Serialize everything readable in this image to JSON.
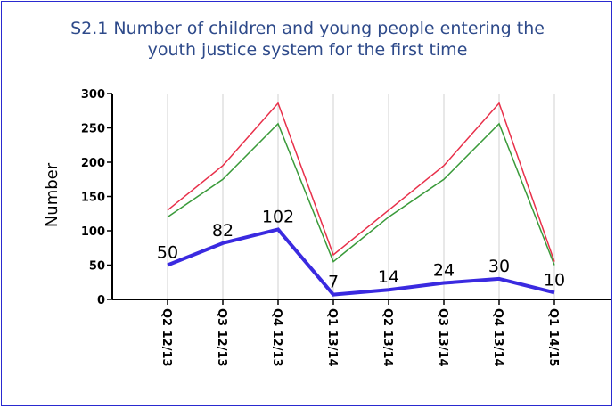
{
  "chart_data": {
    "type": "line",
    "title_line1": "S2.1 Number of children and young people entering the",
    "title_line2": "youth justice system for the first time",
    "ylabel": "Number",
    "xlabel": "",
    "ylim": [
      0,
      300
    ],
    "yticks": [
      0,
      50,
      100,
      150,
      200,
      250,
      300
    ],
    "categories": [
      "Q2 12/13",
      "Q3 12/13",
      "Q4 12/13",
      "Q1 13/14",
      "Q2 13/14",
      "Q3 13/14",
      "Q4 13/14",
      "Q1 14/15"
    ],
    "grid": "vertical",
    "legend": "none",
    "series": [
      {
        "color": "#e8304a",
        "width": 1.5,
        "values": [
          130,
          195,
          286,
          65,
          130,
          195,
          286,
          55
        ],
        "labels": false
      },
      {
        "color": "#3a9a3a",
        "width": 1.5,
        "values": [
          120,
          175,
          256,
          55,
          120,
          175,
          256,
          50
        ],
        "labels": false
      },
      {
        "color": "#3a2ae0",
        "width": 4,
        "values": [
          50,
          82,
          102,
          7,
          14,
          24,
          30,
          10
        ],
        "labels": true,
        "data_labels": [
          "50",
          "82",
          "102",
          "7",
          "14",
          "24",
          "30",
          "10"
        ]
      }
    ]
  }
}
